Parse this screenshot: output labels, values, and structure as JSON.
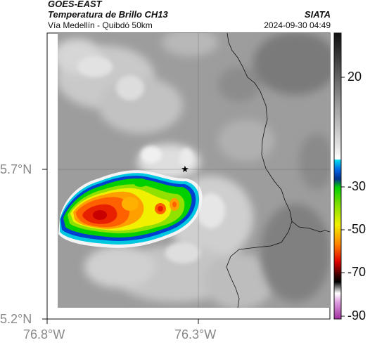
{
  "header": {
    "satellite": "GOES-EAST",
    "product": "Temperatura de Brillo CH13",
    "region": "Vía Medellín - Quibdó 50km",
    "agency": "SIATA",
    "datetime": "2024-09-30 04:49"
  },
  "map": {
    "lat_ticks": [
      "5.7°N",
      "5.2°N"
    ],
    "lon_ticks": [
      "76.8°W",
      "76.3°W"
    ],
    "marker": "star"
  },
  "colorbar": {
    "ticks": [
      "20",
      "-30",
      "-50",
      "-70",
      "-90"
    ],
    "range": [
      -95,
      35
    ],
    "colors": {
      "warm_gray_top": "#111111",
      "cyan": "#00c8e0",
      "blue": "#0030c0",
      "green": "#00d000",
      "yellow": "#f0f000",
      "orange": "#ff8000",
      "red": "#e00000",
      "black": "#000000",
      "magenta": "#c040c0"
    }
  }
}
